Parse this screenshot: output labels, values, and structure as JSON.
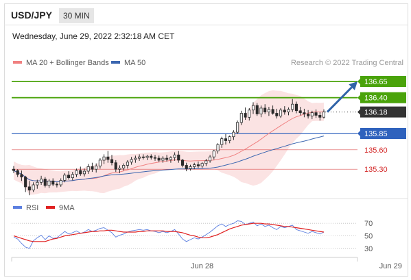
{
  "header": {
    "symbol": "USD/JPY",
    "timeframe": "30 MIN"
  },
  "timestamp": "Wednesday, June 29, 2022 2:32:18 AM CET",
  "credit": "Research © 2022 Trading Central",
  "colors": {
    "resistance": "#4aa30a",
    "last": "#333333",
    "pivot": "#2f62bd",
    "support": "#d42a2a",
    "bollinger": "#f9d9d9",
    "ma20": "#f08080",
    "ma50": "#3b66b0",
    "rsi": "#5b7fe0",
    "rsi_ma": "#e02020",
    "arrow": "#2f63a8",
    "candle": "#2a2a2a"
  },
  "chart_data": [
    {
      "type": "candlestick",
      "legend": [
        {
          "name": "MA 20 + Bollinger Bands",
          "color": "#f08080"
        },
        {
          "name": "MA 50",
          "color": "#3b66b0"
        }
      ],
      "y_range": [
        134.85,
        136.85
      ],
      "levels": [
        {
          "value": 136.65,
          "label": "136.65",
          "kind": "resistance"
        },
        {
          "value": 136.4,
          "label": "136.40",
          "kind": "resistance"
        },
        {
          "value": 136.18,
          "label": "136.18",
          "kind": "last"
        },
        {
          "value": 135.85,
          "label": "135.85",
          "kind": "pivot"
        },
        {
          "value": 135.6,
          "label": "135.60",
          "kind": "support"
        },
        {
          "value": 135.3,
          "label": "135.30",
          "kind": "support"
        }
      ],
      "x_labels": [
        {
          "index": 48,
          "label": "Jun 28"
        },
        {
          "index": 96,
          "label": "Jun 29"
        }
      ],
      "candles": [
        [
          135.3,
          135.35,
          135.24,
          135.28
        ],
        [
          135.28,
          135.3,
          135.18,
          135.22
        ],
        [
          135.22,
          135.28,
          135.12,
          135.18
        ],
        [
          135.18,
          135.2,
          134.95,
          135.03
        ],
        [
          135.03,
          135.12,
          134.9,
          134.98
        ],
        [
          134.98,
          135.1,
          134.95,
          135.06
        ],
        [
          135.06,
          135.14,
          135.0,
          135.1
        ],
        [
          135.1,
          135.2,
          135.06,
          135.15
        ],
        [
          135.15,
          135.18,
          135.02,
          135.05
        ],
        [
          135.05,
          135.15,
          135.01,
          135.12
        ],
        [
          135.12,
          135.16,
          135.04,
          135.07
        ],
        [
          135.07,
          135.1,
          135.02,
          135.06
        ],
        [
          135.06,
          135.16,
          135.03,
          135.13
        ],
        [
          135.13,
          135.24,
          135.1,
          135.21
        ],
        [
          135.21,
          135.27,
          135.14,
          135.17
        ],
        [
          135.17,
          135.26,
          135.13,
          135.22
        ],
        [
          135.22,
          135.31,
          135.18,
          135.28
        ],
        [
          135.28,
          135.34,
          135.2,
          135.23
        ],
        [
          135.23,
          135.31,
          135.19,
          135.27
        ],
        [
          135.27,
          135.38,
          135.23,
          135.34
        ],
        [
          135.34,
          135.4,
          135.26,
          135.3
        ],
        [
          135.3,
          135.39,
          135.25,
          135.35
        ],
        [
          135.35,
          135.47,
          135.31,
          135.44
        ],
        [
          135.44,
          135.53,
          135.38,
          135.49
        ],
        [
          135.49,
          135.58,
          135.4,
          135.45
        ],
        [
          135.45,
          135.52,
          135.36,
          135.4
        ],
        [
          135.4,
          135.44,
          135.26,
          135.3
        ],
        [
          135.3,
          135.36,
          135.24,
          135.32
        ],
        [
          135.32,
          135.39,
          135.28,
          135.36
        ],
        [
          135.36,
          135.44,
          135.31,
          135.41
        ],
        [
          135.41,
          135.49,
          135.37,
          135.45
        ],
        [
          135.45,
          135.51,
          135.4,
          135.47
        ],
        [
          135.47,
          135.53,
          135.43,
          135.49
        ],
        [
          135.49,
          135.53,
          135.45,
          135.48
        ],
        [
          135.48,
          135.52,
          135.44,
          135.5
        ],
        [
          135.5,
          135.53,
          135.45,
          135.48
        ],
        [
          135.48,
          135.52,
          135.43,
          135.47
        ],
        [
          135.47,
          135.51,
          135.41,
          135.44
        ],
        [
          135.44,
          135.5,
          135.4,
          135.47
        ],
        [
          135.47,
          135.52,
          135.42,
          135.45
        ],
        [
          135.45,
          135.5,
          135.4,
          135.48
        ],
        [
          135.48,
          135.56,
          135.43,
          135.52
        ],
        [
          135.52,
          135.58,
          135.4,
          135.44
        ],
        [
          135.44,
          135.46,
          135.33,
          135.36
        ],
        [
          135.36,
          135.4,
          135.27,
          135.31
        ],
        [
          135.31,
          135.37,
          135.28,
          135.34
        ],
        [
          135.34,
          135.4,
          135.3,
          135.37
        ],
        [
          135.37,
          135.42,
          135.32,
          135.35
        ],
        [
          135.35,
          135.41,
          135.32,
          135.39
        ],
        [
          135.39,
          135.46,
          135.35,
          135.43
        ],
        [
          135.43,
          135.52,
          135.4,
          135.49
        ],
        [
          135.49,
          135.6,
          135.45,
          135.58
        ],
        [
          135.58,
          135.7,
          135.54,
          135.68
        ],
        [
          135.68,
          135.8,
          135.63,
          135.77
        ],
        [
          135.77,
          135.84,
          135.68,
          135.74
        ],
        [
          135.74,
          135.82,
          135.7,
          135.8
        ],
        [
          135.8,
          135.9,
          135.75,
          135.87
        ],
        [
          135.87,
          136.05,
          135.84,
          136.02
        ],
        [
          136.02,
          136.2,
          135.98,
          136.16
        ],
        [
          136.16,
          136.25,
          136.06,
          136.1
        ],
        [
          136.1,
          136.24,
          136.05,
          136.21
        ],
        [
          136.21,
          136.33,
          136.15,
          136.28
        ],
        [
          136.28,
          136.32,
          136.12,
          136.15
        ],
        [
          136.15,
          136.28,
          136.1,
          136.24
        ],
        [
          136.24,
          136.3,
          136.15,
          136.18
        ],
        [
          136.18,
          136.26,
          136.12,
          136.22
        ],
        [
          136.22,
          136.28,
          136.14,
          136.16
        ],
        [
          136.16,
          136.23,
          136.08,
          136.12
        ],
        [
          136.12,
          136.24,
          136.09,
          136.21
        ],
        [
          136.21,
          136.27,
          136.14,
          136.18
        ],
        [
          136.18,
          136.25,
          136.13,
          136.22
        ],
        [
          136.22,
          136.38,
          136.18,
          136.3
        ],
        [
          136.3,
          136.34,
          136.16,
          136.2
        ],
        [
          136.2,
          136.26,
          136.13,
          136.17
        ],
        [
          136.17,
          136.23,
          136.1,
          136.15
        ],
        [
          136.15,
          136.21,
          136.08,
          136.12
        ],
        [
          136.12,
          136.2,
          136.07,
          136.17
        ],
        [
          136.17,
          136.22,
          136.09,
          136.13
        ],
        [
          136.13,
          136.18,
          136.05,
          136.1
        ],
        [
          136.1,
          136.22,
          136.08,
          136.18
        ]
      ]
    },
    {
      "type": "line",
      "legend": [
        {
          "name": "RSI",
          "color": "#5b7fe0"
        },
        {
          "name": "9MA",
          "color": "#e02020"
        }
      ],
      "y_range": [
        20,
        80
      ],
      "ticks": [
        70,
        50,
        30
      ],
      "series": [
        {
          "name": "RSI",
          "values": [
            48,
            45,
            38,
            32,
            30,
            42,
            47,
            51,
            44,
            50,
            46,
            47,
            52,
            57,
            53,
            55,
            58,
            54,
            56,
            60,
            57,
            59,
            62,
            63,
            59,
            55,
            48,
            51,
            53,
            56,
            58,
            59,
            60,
            59,
            60,
            58,
            57,
            55,
            57,
            55,
            57,
            60,
            53,
            45,
            41,
            44,
            47,
            45,
            48,
            52,
            56,
            61,
            66,
            69,
            65,
            68,
            70,
            74,
            73,
            68,
            70,
            72,
            66,
            69,
            65,
            67,
            63,
            60,
            65,
            63,
            65,
            67,
            60,
            58,
            56,
            54,
            57,
            55,
            53,
            56
          ]
        },
        {
          "name": "9MA",
          "values": [
            50,
            48,
            46,
            44,
            42,
            41,
            41,
            41,
            41,
            43,
            45,
            46,
            48,
            50,
            51,
            52,
            53,
            54,
            55,
            56,
            57,
            57,
            58,
            58,
            59,
            59,
            58,
            57,
            56,
            56,
            56,
            56,
            57,
            57,
            58,
            58,
            58,
            58,
            58,
            57,
            57,
            57,
            56,
            55,
            53,
            51,
            50,
            48,
            47,
            47,
            48,
            50,
            52,
            55,
            58,
            61,
            63,
            65,
            67,
            68,
            69,
            70,
            70,
            70,
            69,
            69,
            68,
            67,
            66,
            65,
            65,
            64,
            63,
            62,
            61,
            60,
            59,
            58,
            57,
            56
          ]
        }
      ]
    }
  ]
}
